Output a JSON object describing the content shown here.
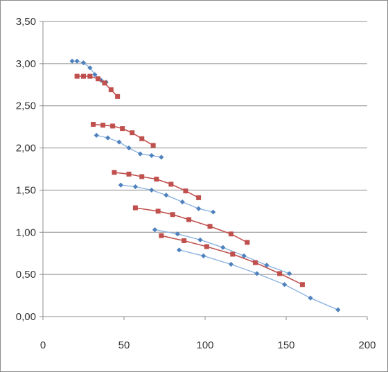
{
  "chart_data": {
    "type": "scatter",
    "title": "",
    "xlabel": "",
    "ylabel": "",
    "xlim": [
      0,
      200
    ],
    "ylim": [
      0,
      3.5
    ],
    "x_ticks": [
      0,
      50,
      100,
      150,
      200
    ],
    "x_tick_labels": [
      "0",
      "50",
      "100",
      "150",
      "200"
    ],
    "y_ticks": [
      0,
      0.5,
      1.0,
      1.5,
      2.0,
      2.5,
      3.0,
      3.5
    ],
    "y_tick_labels": [
      "0,00",
      "0,50",
      "1,00",
      "1,50",
      "2,00",
      "2,50",
      "3,00",
      "3,50"
    ],
    "grid": "horizontal",
    "legend": "none",
    "colors": {
      "blue_line": "#8db4e2",
      "blue_marker": "#4f81bd",
      "red_line": "#c0504d",
      "red_marker": "#c0504d",
      "grid": "#8c8c8c",
      "axis": "#8c8c8c"
    },
    "series": [
      {
        "group": "blue",
        "marker": "diamond",
        "points": [
          [
            18,
            3.03
          ],
          [
            21,
            3.03
          ],
          [
            25,
            3.01
          ],
          [
            29,
            2.95
          ],
          [
            32,
            2.87
          ],
          [
            36,
            2.8
          ],
          [
            39,
            2.78
          ]
        ]
      },
      {
        "group": "blue",
        "marker": "diamond",
        "points": [
          [
            33,
            2.15
          ],
          [
            40,
            2.12
          ],
          [
            47,
            2.07
          ],
          [
            53,
            2.0
          ],
          [
            60,
            1.93
          ],
          [
            67,
            1.91
          ],
          [
            73,
            1.89
          ]
        ]
      },
      {
        "group": "blue",
        "marker": "diamond",
        "points": [
          [
            48,
            1.56
          ],
          [
            57,
            1.54
          ],
          [
            67,
            1.5
          ],
          [
            76,
            1.44
          ],
          [
            86,
            1.36
          ],
          [
            96,
            1.28
          ],
          [
            105,
            1.24
          ]
        ]
      },
      {
        "group": "blue",
        "marker": "diamond",
        "points": [
          [
            69,
            1.03
          ],
          [
            83,
            0.98
          ],
          [
            97,
            0.91
          ],
          [
            111,
            0.82
          ],
          [
            124,
            0.72
          ],
          [
            138,
            0.61
          ],
          [
            152,
            0.51
          ]
        ]
      },
      {
        "group": "blue",
        "marker": "diamond",
        "points": [
          [
            84,
            0.79
          ],
          [
            99,
            0.72
          ],
          [
            116,
            0.62
          ],
          [
            132,
            0.51
          ],
          [
            149,
            0.38
          ],
          [
            165,
            0.22
          ],
          [
            182,
            0.08
          ]
        ]
      },
      {
        "group": "red",
        "marker": "square",
        "points": [
          [
            21,
            2.85
          ],
          [
            25,
            2.85
          ],
          [
            29,
            2.85
          ],
          [
            34,
            2.82
          ],
          [
            38,
            2.77
          ],
          [
            42,
            2.69
          ],
          [
            46,
            2.61
          ]
        ]
      },
      {
        "group": "red",
        "marker": "square",
        "points": [
          [
            31,
            2.28
          ],
          [
            37,
            2.27
          ],
          [
            43,
            2.26
          ],
          [
            49,
            2.23
          ],
          [
            55,
            2.18
          ],
          [
            61,
            2.11
          ],
          [
            68,
            2.03
          ]
        ]
      },
      {
        "group": "red",
        "marker": "square",
        "points": [
          [
            44,
            1.71
          ],
          [
            53,
            1.69
          ],
          [
            61,
            1.66
          ],
          [
            70,
            1.63
          ],
          [
            79,
            1.57
          ],
          [
            88,
            1.49
          ],
          [
            96,
            1.41
          ]
        ]
      },
      {
        "group": "red",
        "marker": "square",
        "points": [
          [
            57,
            1.29
          ],
          [
            71,
            1.25
          ],
          [
            80,
            1.21
          ],
          [
            90,
            1.15
          ],
          [
            103,
            1.07
          ],
          [
            116,
            0.98
          ],
          [
            126,
            0.88
          ]
        ]
      },
      {
        "group": "red",
        "marker": "square",
        "points": [
          [
            73,
            0.96
          ],
          [
            87,
            0.9
          ],
          [
            101,
            0.83
          ],
          [
            117,
            0.74
          ],
          [
            131,
            0.64
          ],
          [
            146,
            0.51
          ],
          [
            160,
            0.38
          ]
        ]
      }
    ]
  }
}
